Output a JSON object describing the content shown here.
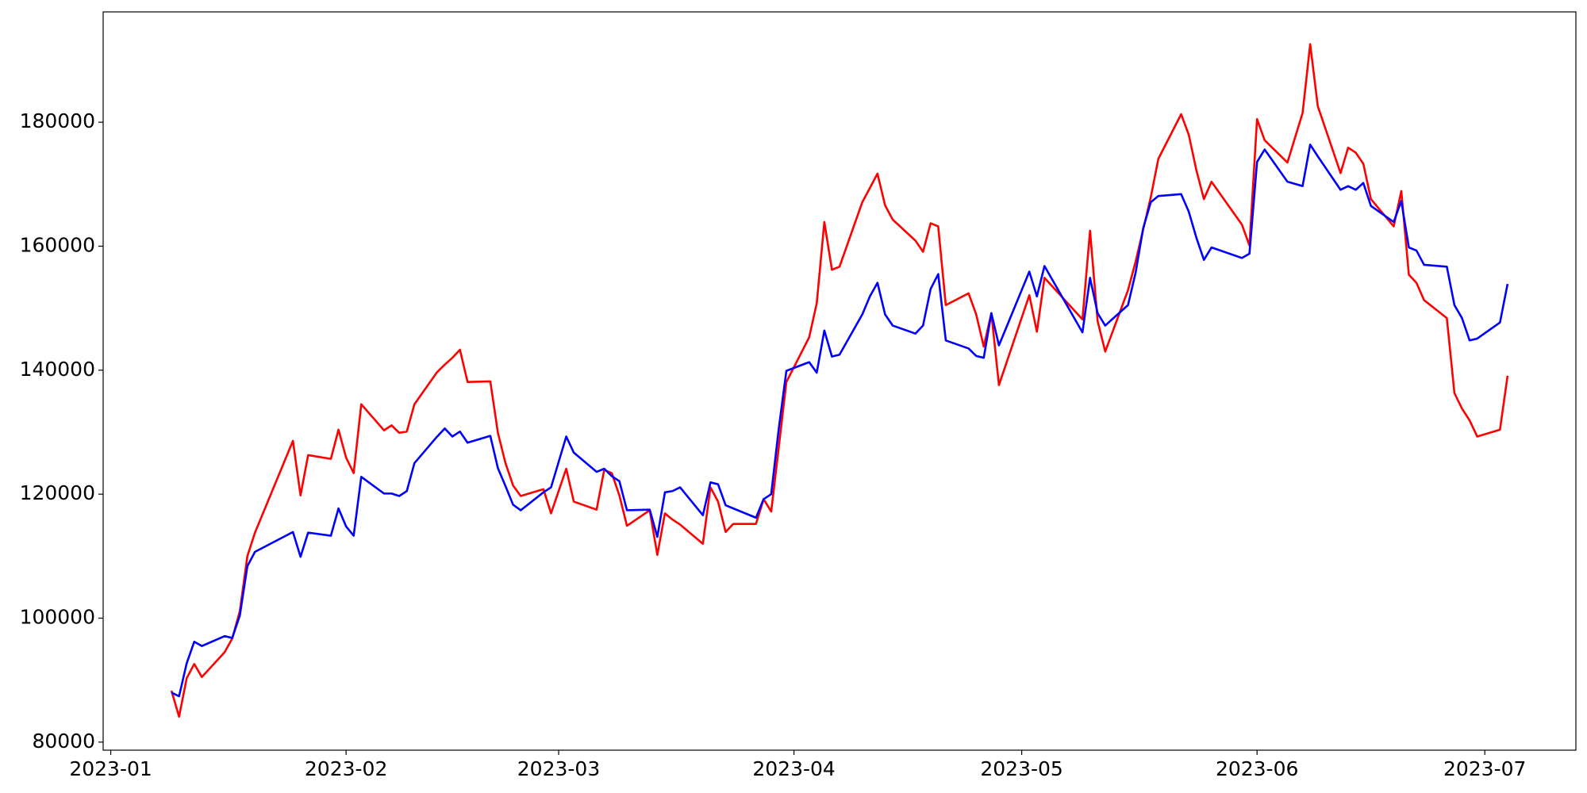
{
  "chart_data": {
    "type": "line",
    "x": [
      "2023-01-09",
      "2023-01-10",
      "2023-01-11",
      "2023-01-12",
      "2023-01-13",
      "2023-01-16",
      "2023-01-17",
      "2023-01-18",
      "2023-01-19",
      "2023-01-20",
      "2023-01-25",
      "2023-01-26",
      "2023-01-27",
      "2023-01-30",
      "2023-01-31",
      "2023-02-01",
      "2023-02-02",
      "2023-02-03",
      "2023-02-06",
      "2023-02-07",
      "2023-02-08",
      "2023-02-09",
      "2023-02-10",
      "2023-02-13",
      "2023-02-14",
      "2023-02-15",
      "2023-02-16",
      "2023-02-17",
      "2023-02-20",
      "2023-02-21",
      "2023-02-22",
      "2023-02-23",
      "2023-02-24",
      "2023-02-27",
      "2023-02-28",
      "2023-03-02",
      "2023-03-03",
      "2023-03-06",
      "2023-03-07",
      "2023-03-08",
      "2023-03-09",
      "2023-03-10",
      "2023-03-13",
      "2023-03-14",
      "2023-03-15",
      "2023-03-16",
      "2023-03-17",
      "2023-03-20",
      "2023-03-21",
      "2023-03-22",
      "2023-03-23",
      "2023-03-24",
      "2023-03-27",
      "2023-03-28",
      "2023-03-29",
      "2023-03-30",
      "2023-03-31",
      "2023-04-03",
      "2023-04-04",
      "2023-04-05",
      "2023-04-06",
      "2023-04-07",
      "2023-04-10",
      "2023-04-11",
      "2023-04-12",
      "2023-04-13",
      "2023-04-14",
      "2023-04-17",
      "2023-04-18",
      "2023-04-19",
      "2023-04-20",
      "2023-04-21",
      "2023-04-24",
      "2023-04-25",
      "2023-04-26",
      "2023-04-27",
      "2023-04-28",
      "2023-05-02",
      "2023-05-03",
      "2023-05-04",
      "2023-05-09",
      "2023-05-10",
      "2023-05-11",
      "2023-05-12",
      "2023-05-15",
      "2023-05-16",
      "2023-05-17",
      "2023-05-18",
      "2023-05-19",
      "2023-05-22",
      "2023-05-23",
      "2023-05-24",
      "2023-05-25",
      "2023-05-26",
      "2023-05-30",
      "2023-05-31",
      "2023-06-01",
      "2023-06-02",
      "2023-06-05",
      "2023-06-07",
      "2023-06-08",
      "2023-06-09",
      "2023-06-12",
      "2023-06-13",
      "2023-06-14",
      "2023-06-15",
      "2023-06-16",
      "2023-06-19",
      "2023-06-20",
      "2023-06-21",
      "2023-06-22",
      "2023-06-23",
      "2023-06-26",
      "2023-06-27",
      "2023-06-28",
      "2023-06-29",
      "2023-06-30",
      "2023-07-03",
      "2023-07-04"
    ],
    "series": [
      {
        "color": "#ff0000",
        "values": [
          88300,
          84100,
          90300,
          92600,
          90500,
          94500,
          96700,
          101100,
          110000,
          113800,
          128600,
          119800,
          126300,
          125700,
          130400,
          125900,
          123400,
          134500,
          130300,
          131100,
          129900,
          130100,
          134500,
          139700,
          140900,
          142000,
          143300,
          138100,
          138200,
          129900,
          125000,
          121400,
          119700,
          120800,
          116900,
          124100,
          118800,
          117500,
          123900,
          123400,
          119800,
          114900,
          117400,
          110200,
          116900,
          115900,
          115100,
          112000,
          121100,
          118800,
          113900,
          115200,
          115200,
          119200,
          117200,
          127600,
          138100,
          145300,
          150800,
          163900,
          156200,
          156700,
          167100,
          169400,
          171700,
          166600,
          164300,
          160900,
          159100,
          163700,
          163200,
          150500,
          152400,
          149000,
          143800,
          149200,
          137600,
          152100,
          146200,
          154900,
          148200,
          162500,
          147900,
          143000,
          152900,
          157500,
          162700,
          167900,
          174100,
          181300,
          178000,
          172300,
          167600,
          170400,
          163500,
          160100,
          180500,
          177100,
          173500,
          181500,
          192600,
          182600,
          171800,
          175900,
          175100,
          173300,
          167600,
          163200,
          168900,
          155400,
          154100,
          151300,
          148400,
          136300,
          133800,
          131900,
          129300,
          130400,
          139100
        ]
      },
      {
        "color": "#0000ff",
        "values": [
          88000,
          87400,
          92700,
          96200,
          95500,
          97100,
          96800,
          100400,
          108400,
          110700,
          113900,
          109900,
          113800,
          113300,
          117700,
          114800,
          113300,
          122800,
          120100,
          120100,
          119700,
          120500,
          125000,
          129300,
          130600,
          129300,
          130100,
          128300,
          129400,
          124200,
          121300,
          118300,
          117400,
          120300,
          121100,
          129300,
          126700,
          123600,
          124100,
          122900,
          122100,
          117400,
          117500,
          113100,
          120300,
          120500,
          121100,
          116600,
          121900,
          121600,
          118200,
          117700,
          116200,
          119200,
          120000,
          130600,
          139900,
          141300,
          139600,
          146400,
          142200,
          142500,
          149000,
          151900,
          154100,
          149000,
          147200,
          145900,
          147200,
          153100,
          155500,
          144800,
          143500,
          142300,
          142000,
          149200,
          144000,
          155900,
          151900,
          156800,
          146100,
          154900,
          149200,
          147200,
          150500,
          155700,
          162900,
          167100,
          168100,
          168400,
          165600,
          161400,
          157800,
          159800,
          158100,
          158800,
          173600,
          175600,
          170400,
          169700,
          176400,
          174500,
          169100,
          169700,
          169100,
          170200,
          166500,
          163900,
          167300,
          159800,
          159300,
          157000,
          156700,
          150500,
          148400,
          144800,
          145100,
          147700,
          153900
        ]
      }
    ],
    "xlim": [
      "2022-12-31",
      "2023-07-13"
    ],
    "xticks": [
      {
        "value": "2023-01-01",
        "label": "2023-01"
      },
      {
        "value": "2023-02-01",
        "label": "2023-02"
      },
      {
        "value": "2023-03-01",
        "label": "2023-03"
      },
      {
        "value": "2023-04-01",
        "label": "2023-04"
      },
      {
        "value": "2023-05-01",
        "label": "2023-05"
      },
      {
        "value": "2023-06-01",
        "label": "2023-06"
      },
      {
        "value": "2023-07-01",
        "label": "2023-07"
      }
    ],
    "ylim": [
      78700,
      197800
    ],
    "yticks": [
      80000,
      100000,
      120000,
      140000,
      160000,
      180000
    ],
    "grid": false
  }
}
